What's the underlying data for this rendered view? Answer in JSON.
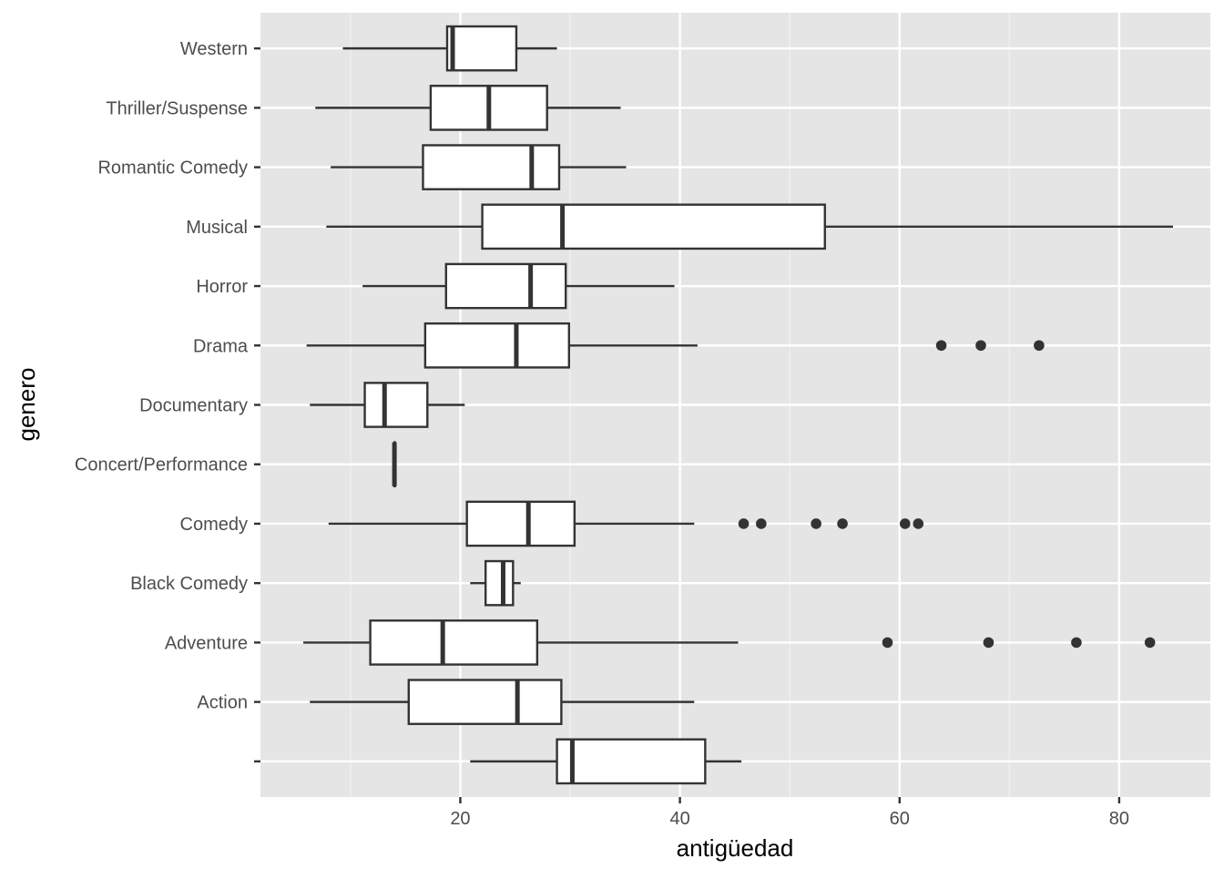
{
  "chart_data": {
    "type": "boxplot",
    "orientation": "horizontal",
    "xlabel": "antigüedad",
    "ylabel": "genero",
    "xlim": [
      1.8,
      88.3
    ],
    "x_ticks": [
      20,
      40,
      60,
      80
    ],
    "x_tick_labels": [
      "20",
      "40",
      "60",
      "80"
    ],
    "grid": true,
    "background": "#e5e5e5",
    "categories": [
      "",
      "Action",
      "Adventure",
      "Black Comedy",
      "Comedy",
      "Concert/Performance",
      "Documentary",
      "Drama",
      "Horror",
      "Musical",
      "Romantic Comedy",
      "Thriller/Suspense",
      "Western"
    ],
    "boxes": [
      {
        "category": "",
        "whisker_low": 20.9,
        "q1": 28.8,
        "median": 30.2,
        "q3": 42.3,
        "whisker_high": 45.6,
        "outliers": []
      },
      {
        "category": "Action",
        "whisker_low": 6.3,
        "q1": 15.3,
        "median": 25.2,
        "q3": 29.2,
        "whisker_high": 41.3,
        "outliers": []
      },
      {
        "category": "Adventure",
        "whisker_low": 5.7,
        "q1": 11.8,
        "median": 18.4,
        "q3": 27.0,
        "whisker_high": 45.3,
        "outliers": [
          58.9,
          68.1,
          76.1,
          82.8
        ]
      },
      {
        "category": "Black Comedy",
        "whisker_low": 20.9,
        "q1": 22.3,
        "median": 23.9,
        "q3": 24.8,
        "whisker_high": 25.5,
        "outliers": []
      },
      {
        "category": "Comedy",
        "whisker_low": 8.0,
        "q1": 20.6,
        "median": 26.2,
        "q3": 30.4,
        "whisker_high": 41.3,
        "outliers": [
          45.8,
          47.4,
          52.4,
          54.8,
          60.5,
          61.7
        ]
      },
      {
        "category": "Concert/Performance",
        "whisker_low": 14.0,
        "q1": 14.0,
        "median": 14.0,
        "q3": 14.0,
        "whisker_high": 14.0,
        "outliers": []
      },
      {
        "category": "Documentary",
        "whisker_low": 6.3,
        "q1": 11.3,
        "median": 13.1,
        "q3": 17.0,
        "whisker_high": 20.4,
        "outliers": []
      },
      {
        "category": "Drama",
        "whisker_low": 6.0,
        "q1": 16.8,
        "median": 25.1,
        "q3": 29.9,
        "whisker_high": 41.6,
        "outliers": [
          63.8,
          67.4,
          72.7
        ]
      },
      {
        "category": "Horror",
        "whisker_low": 11.1,
        "q1": 18.7,
        "median": 26.4,
        "q3": 29.6,
        "whisker_high": 39.5,
        "outliers": []
      },
      {
        "category": "Musical",
        "whisker_low": 7.8,
        "q1": 22.0,
        "median": 29.3,
        "q3": 53.2,
        "whisker_high": 84.9,
        "outliers": []
      },
      {
        "category": "Romantic Comedy",
        "whisker_low": 8.2,
        "q1": 16.6,
        "median": 26.5,
        "q3": 29.0,
        "whisker_high": 35.1,
        "outliers": []
      },
      {
        "category": "Thriller/Suspense",
        "whisker_low": 6.8,
        "q1": 17.3,
        "median": 22.6,
        "q3": 27.9,
        "whisker_high": 34.6,
        "outliers": []
      },
      {
        "category": "Western",
        "whisker_low": 9.3,
        "q1": 18.8,
        "median": 19.3,
        "q3": 25.1,
        "whisker_high": 28.8,
        "outliers": []
      }
    ]
  }
}
